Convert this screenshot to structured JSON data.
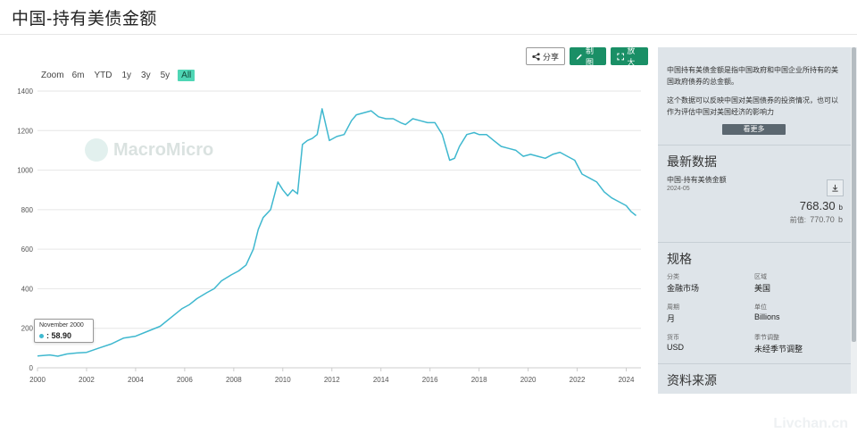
{
  "page": {
    "title": "中国-持有美债金额"
  },
  "toolbar": {
    "share_label": "分享",
    "draw_label": "制图",
    "enlarge_label": "放大"
  },
  "zoom": {
    "label": "Zoom",
    "options": [
      "6m",
      "YTD",
      "1y",
      "3y",
      "5y",
      "All"
    ],
    "active": "All"
  },
  "watermark": {
    "text": "MacroMicro"
  },
  "tooltip": {
    "date": "November 2000",
    "value": ": 58.90"
  },
  "side": {
    "description": [
      "中国持有美债金额是指中国政府和中国企业所持有的美国政府债券的总金额。",
      "这个数据可以反映中国对美国债券的投资情况，也可以作为评估中国对美国经济的影响力"
    ],
    "more_label": "看更多",
    "latest": {
      "heading": "最新数据",
      "name": "中国-持有美债金额",
      "date": "2024-05",
      "value": "768.30",
      "unit": "b",
      "prev_label": "前值:",
      "prev_value": "770.70",
      "prev_unit": "b"
    },
    "specs": {
      "heading": "规格",
      "items": [
        {
          "label": "分类",
          "value": "金融市场"
        },
        {
          "label": "区域",
          "value": "美国"
        },
        {
          "label": "周期",
          "value": "月"
        },
        {
          "label": "单位",
          "value": "Billions"
        },
        {
          "label": "货币",
          "value": "USD"
        },
        {
          "label": "季节调整",
          "value": "未经季节调整"
        }
      ]
    },
    "sources_heading": "资料来源"
  },
  "site_watermark": "Livchan.cn",
  "colors": {
    "line": "#3fb8cf",
    "accent": "#1a8f66",
    "zoom_active": "#4fd6b5"
  },
  "chart_data": {
    "type": "line",
    "title": "",
    "xlabel": "",
    "ylabel": "",
    "ylim": [
      0,
      1400
    ],
    "xlim": [
      2000,
      2024.6
    ],
    "yticks": [
      0,
      200,
      400,
      600,
      800,
      1000,
      1200,
      1400
    ],
    "xticks": [
      2000,
      2002,
      2004,
      2006,
      2008,
      2010,
      2012,
      2014,
      2016,
      2018,
      2020,
      2022,
      2024
    ],
    "grid": true,
    "series": [
      {
        "x": [
          2000.0,
          2000.5,
          2000.83,
          2001.2,
          2001.6,
          2002.0,
          2002.5,
          2003.0,
          2003.5,
          2004.0,
          2004.5,
          2005.0,
          2005.5,
          2005.9,
          2006.2,
          2006.5,
          2006.9,
          2007.2,
          2007.5,
          2007.9,
          2008.2,
          2008.5,
          2008.8,
          2009.0,
          2009.2,
          2009.5,
          2009.8,
          2010.0,
          2010.2,
          2010.4,
          2010.6,
          2010.8,
          2011.0,
          2011.2,
          2011.4,
          2011.6,
          2011.9,
          2012.2,
          2012.5,
          2012.8,
          2013.0,
          2013.3,
          2013.6,
          2013.9,
          2014.2,
          2014.5,
          2014.8,
          2015.0,
          2015.3,
          2015.6,
          2015.9,
          2016.2,
          2016.5,
          2016.8,
          2017.0,
          2017.2,
          2017.5,
          2017.8,
          2018.0,
          2018.3,
          2018.6,
          2018.9,
          2019.2,
          2019.5,
          2019.8,
          2020.1,
          2020.4,
          2020.7,
          2021.0,
          2021.3,
          2021.6,
          2021.9,
          2022.2,
          2022.5,
          2022.8,
          2023.1,
          2023.4,
          2023.7,
          2024.0,
          2024.2,
          2024.4
        ],
        "y": [
          60,
          65,
          58.9,
          70,
          75,
          78,
          100,
          120,
          150,
          160,
          185,
          210,
          260,
          300,
          320,
          350,
          380,
          400,
          440,
          470,
          490,
          520,
          600,
          700,
          760,
          800,
          940,
          900,
          870,
          900,
          880,
          1130,
          1150,
          1160,
          1180,
          1310,
          1150,
          1170,
          1180,
          1250,
          1280,
          1290,
          1300,
          1270,
          1260,
          1260,
          1240,
          1230,
          1260,
          1250,
          1240,
          1240,
          1180,
          1050,
          1060,
          1120,
          1180,
          1190,
          1180,
          1180,
          1150,
          1120,
          1110,
          1100,
          1070,
          1080,
          1070,
          1060,
          1080,
          1090,
          1070,
          1050,
          980,
          960,
          940,
          890,
          860,
          840,
          820,
          790,
          770
        ]
      }
    ]
  }
}
